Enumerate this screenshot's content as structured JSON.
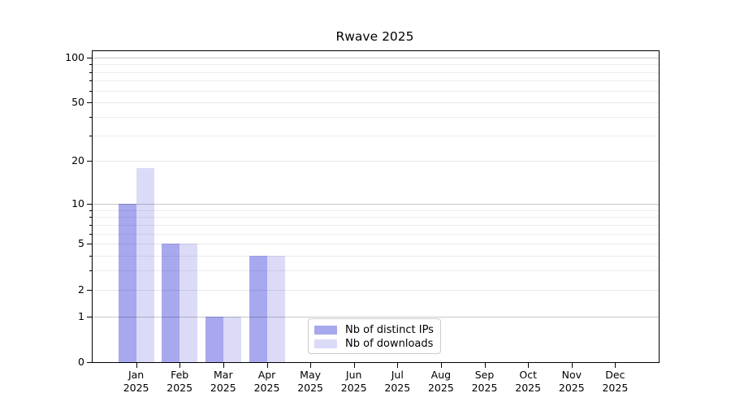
{
  "title": "Rwave 2025",
  "chart_data": {
    "type": "bar",
    "title": "Rwave 2025",
    "categories": [
      "Jan",
      "Feb",
      "Mar",
      "Apr",
      "May",
      "Jun",
      "Jul",
      "Aug",
      "Sep",
      "Oct",
      "Nov",
      "Dec"
    ],
    "category_year": "2025",
    "series": [
      {
        "name": "Nb of distinct IPs",
        "color": "#a8a8ef",
        "values": [
          10,
          5,
          1,
          4,
          0,
          0,
          0,
          0,
          0,
          0,
          0,
          0
        ]
      },
      {
        "name": "Nb of downloads",
        "color": "#dbdbf8",
        "values": [
          18,
          5,
          1,
          4,
          0,
          0,
          0,
          0,
          0,
          0,
          0,
          0
        ]
      }
    ],
    "xlabel": "",
    "ylabel": "",
    "yscale": "log1p",
    "ylim": [
      0,
      110
    ],
    "yticks_labeled": [
      0,
      1,
      2,
      5,
      10,
      20,
      50,
      100
    ],
    "yticks_minor": [
      3,
      4,
      6,
      7,
      8,
      9,
      30,
      40,
      60,
      70,
      80,
      90
    ],
    "grid": "horizontal",
    "grid_major_values": [
      1,
      10,
      100
    ],
    "legend_position": "inside-bottom-center",
    "colors": {
      "axis": "#000000",
      "grid_major": "#c6c6c6",
      "grid_minor": "#ededed",
      "background": "#ffffff"
    }
  }
}
